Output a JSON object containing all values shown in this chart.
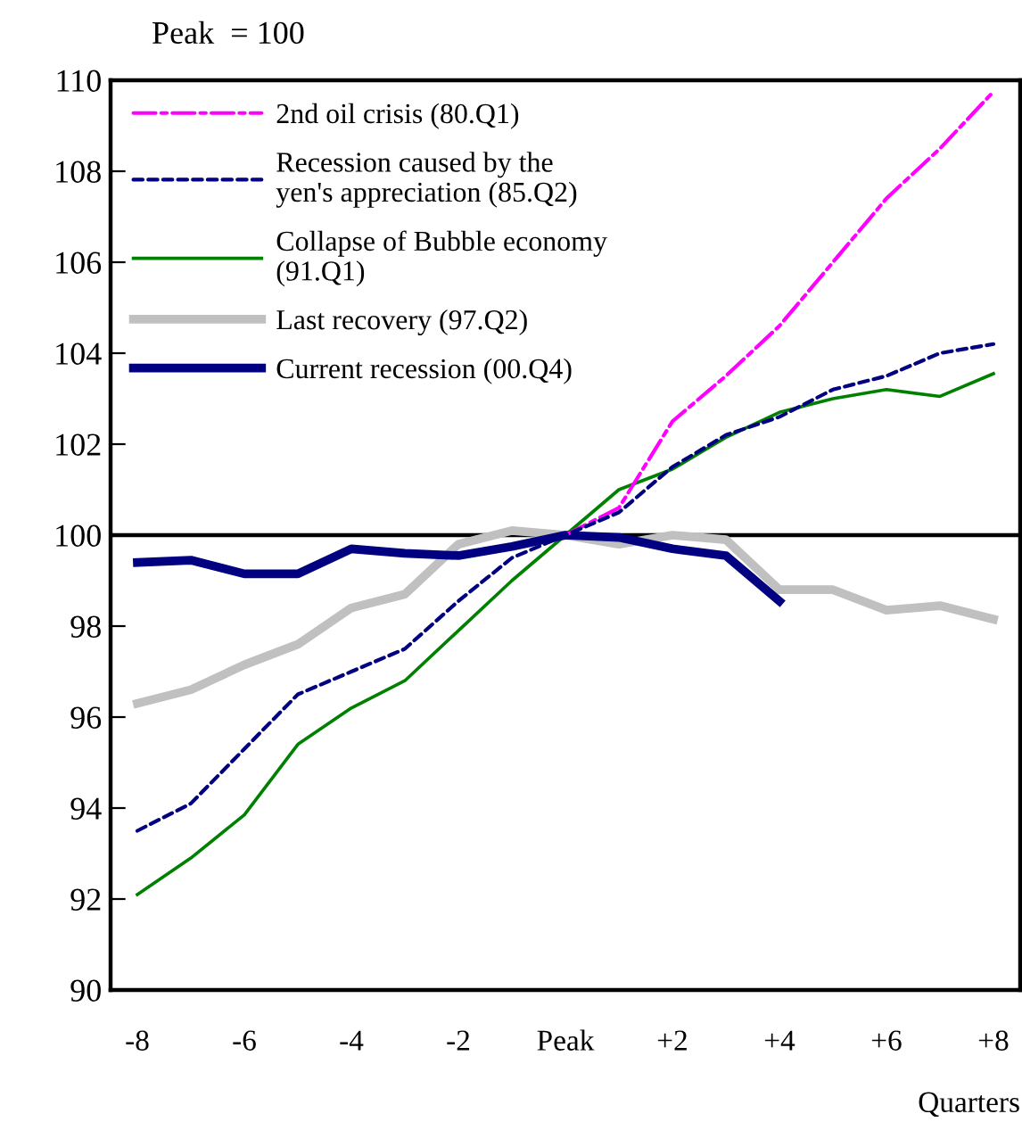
{
  "chart_data": {
    "type": "line",
    "annotations": [
      "Peak  = 100"
    ],
    "xlabel": "Quarters",
    "x": [
      -8,
      -7,
      -6,
      -5,
      -4,
      -3,
      -2,
      -1,
      0,
      1,
      2,
      3,
      4,
      5,
      6,
      7,
      8
    ],
    "xlim": [
      -8.5,
      8.5
    ],
    "xticks": [
      -8,
      -6,
      -4,
      -2,
      {
        "value": 0,
        "label": "Peak"
      },
      {
        "value": 2,
        "label": "+2"
      },
      {
        "value": 4,
        "label": "+4"
      },
      {
        "value": 6,
        "label": "+6"
      },
      {
        "value": 8,
        "label": "+8"
      }
    ],
    "ylim": [
      90,
      110
    ],
    "yticks": [
      90,
      92,
      94,
      96,
      98,
      100,
      102,
      104,
      106,
      108,
      110
    ],
    "ref_lines": [
      {
        "axis": "y",
        "value": 100,
        "label": null,
        "color": "#000000"
      }
    ],
    "grid": false,
    "legend": "top left",
    "marker": "none",
    "series": [
      {
        "name": "2nd oil crisis (80.Q1)",
        "color": "#ff00ff",
        "line_style": "dashdot",
        "values": [
          null,
          null,
          null,
          null,
          null,
          null,
          null,
          null,
          100,
          100.6,
          102.5,
          103.5,
          104.6,
          106.0,
          107.4,
          108.5,
          109.75
        ]
      },
      {
        "name": "Recession caused by the\nyen's appreciation (85.Q2)",
        "color": "#000080",
        "line_style": "dashed",
        "values": [
          93.5,
          94.1,
          95.3,
          96.5,
          97.0,
          97.5,
          98.55,
          99.5,
          100,
          100.5,
          101.5,
          102.2,
          102.6,
          103.2,
          103.5,
          104.0,
          104.2
        ]
      },
      {
        "name": "Collapse of Bubble economy\n(91.Q1)",
        "color": "#008000",
        "line_style": "solid",
        "values": [
          92.1,
          92.9,
          93.85,
          95.4,
          96.2,
          96.8,
          97.9,
          99.0,
          100,
          101.0,
          101.45,
          102.15,
          102.7,
          103.0,
          103.2,
          103.05,
          103.55
        ]
      },
      {
        "name": "Last recovery (97.Q2)",
        "color": "#c0c0c0",
        "line_style": "solid",
        "values": [
          96.3,
          96.6,
          97.15,
          97.6,
          98.4,
          98.7,
          99.8,
          100.1,
          100,
          99.8,
          100.0,
          99.9,
          98.8,
          98.8,
          98.35,
          98.45,
          98.15
        ]
      },
      {
        "name": "Current recession (00.Q4)",
        "color": "#000080",
        "line_style": "solid",
        "values": [
          99.4,
          99.45,
          99.15,
          99.15,
          99.7,
          99.6,
          99.55,
          99.75,
          100,
          99.95,
          99.7,
          99.55,
          98.55,
          null,
          null,
          null,
          null
        ]
      }
    ]
  }
}
